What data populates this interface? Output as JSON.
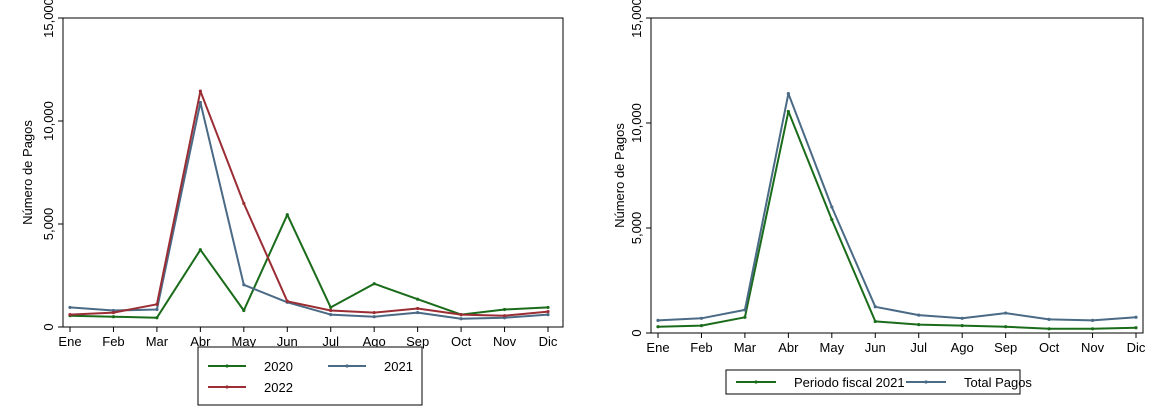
{
  "chart_data": [
    {
      "type": "line",
      "ylabel": "Número de Pagos",
      "ylim": [
        0,
        15000
      ],
      "yticks": [
        0,
        5000,
        10000,
        15000
      ],
      "ytick_labels": [
        "0",
        "5,000",
        "10,000",
        "15,000"
      ],
      "categories": [
        "Ene",
        "Feb",
        "Mar",
        "Abr",
        "May",
        "Jun",
        "Jul",
        "Ago",
        "Sep",
        "Oct",
        "Nov",
        "Dic"
      ],
      "grid": false,
      "legend_position": "bottom",
      "series": [
        {
          "name": "2020",
          "color": "#1a6b1a",
          "values": [
            550,
            500,
            450,
            3750,
            800,
            5450,
            950,
            2100,
            1350,
            600,
            850,
            950
          ]
        },
        {
          "name": "2021",
          "color": "#4a6a86",
          "values": [
            950,
            800,
            850,
            10900,
            2050,
            1200,
            600,
            500,
            700,
            400,
            450,
            600
          ]
        },
        {
          "name": "2022",
          "color": "#9b2e35",
          "values": [
            600,
            700,
            1100,
            11450,
            6000,
            1250,
            800,
            700,
            900,
            600,
            550,
            750
          ]
        }
      ]
    },
    {
      "type": "line",
      "ylabel": "Número de Pagos",
      "ylim": [
        0,
        15000
      ],
      "yticks": [
        0,
        5000,
        10000,
        15000
      ],
      "ytick_labels": [
        "0",
        "5,000",
        "10,000",
        "15,000"
      ],
      "categories": [
        "Ene",
        "Feb",
        "Mar",
        "Abr",
        "May",
        "Jun",
        "Jul",
        "Ago",
        "Sep",
        "Oct",
        "Nov",
        "Dic"
      ],
      "grid": false,
      "legend_position": "bottom",
      "series": [
        {
          "name": "Periodo fiscal 2021",
          "color": "#1a6b1a",
          "values": [
            300,
            350,
            750,
            10550,
            5400,
            550,
            400,
            350,
            300,
            200,
            200,
            250
          ]
        },
        {
          "name": "Total Pagos",
          "color": "#4a6a86",
          "values": [
            600,
            700,
            1100,
            11400,
            6000,
            1250,
            850,
            700,
            950,
            650,
            600,
            750
          ]
        }
      ]
    }
  ]
}
